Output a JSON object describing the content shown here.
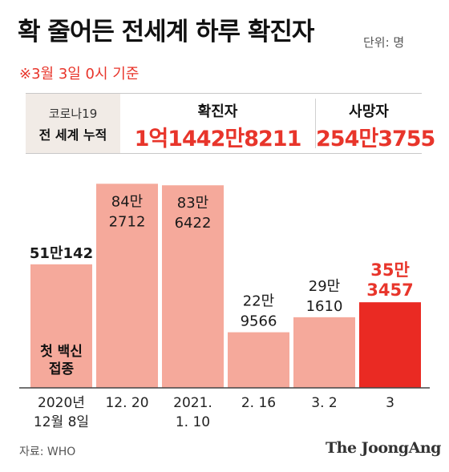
{
  "title": "확 줄어든 전세계 하루 확진자",
  "unit_note": "단위: 명",
  "basis_note": "※3월 3일 0시 기준",
  "cumulative": {
    "label_line1": "코로나19",
    "label_line2": "전 세계 누적",
    "confirmed_label": "확진자",
    "confirmed_value": "1억1442만8211",
    "deaths_label": "사망자",
    "deaths_value": "254만3755"
  },
  "colors": {
    "bar": "#f5a99b",
    "highlight": "#ea2a23",
    "accent_text": "#e8352b",
    "baseline": "#444444"
  },
  "chart_data": {
    "type": "bar",
    "title": "",
    "xlabel": "",
    "ylabel": "",
    "ylim": [
      0,
      900000
    ],
    "grid": false,
    "categories": [
      "2020년 12월 8일",
      "12. 20",
      "2021. 1. 10",
      "2. 16",
      "3. 2",
      "3"
    ],
    "category_lines": [
      [
        "2020년",
        "12월 8일"
      ],
      [
        "12. 20"
      ],
      [
        "2021.",
        "1. 10"
      ],
      [
        "2. 16"
      ],
      [
        "3. 2"
      ],
      [
        "3"
      ]
    ],
    "values": [
      510142,
      842712,
      836422,
      229566,
      291610,
      353457
    ],
    "value_labels": [
      [
        "51만142"
      ],
      [
        "84만",
        "2712"
      ],
      [
        "83만",
        "6422"
      ],
      [
        "22만",
        "9566"
      ],
      [
        "29만",
        "1610"
      ],
      [
        "35만",
        "3457"
      ]
    ],
    "value_label_inside": [
      false,
      true,
      true,
      false,
      false,
      false
    ],
    "highlight_index": 5,
    "annotations": [
      {
        "index": 0,
        "lines": [
          "첫 백신",
          "접종"
        ]
      }
    ]
  },
  "source": "자료: WHO",
  "logo": "The JoongAng"
}
